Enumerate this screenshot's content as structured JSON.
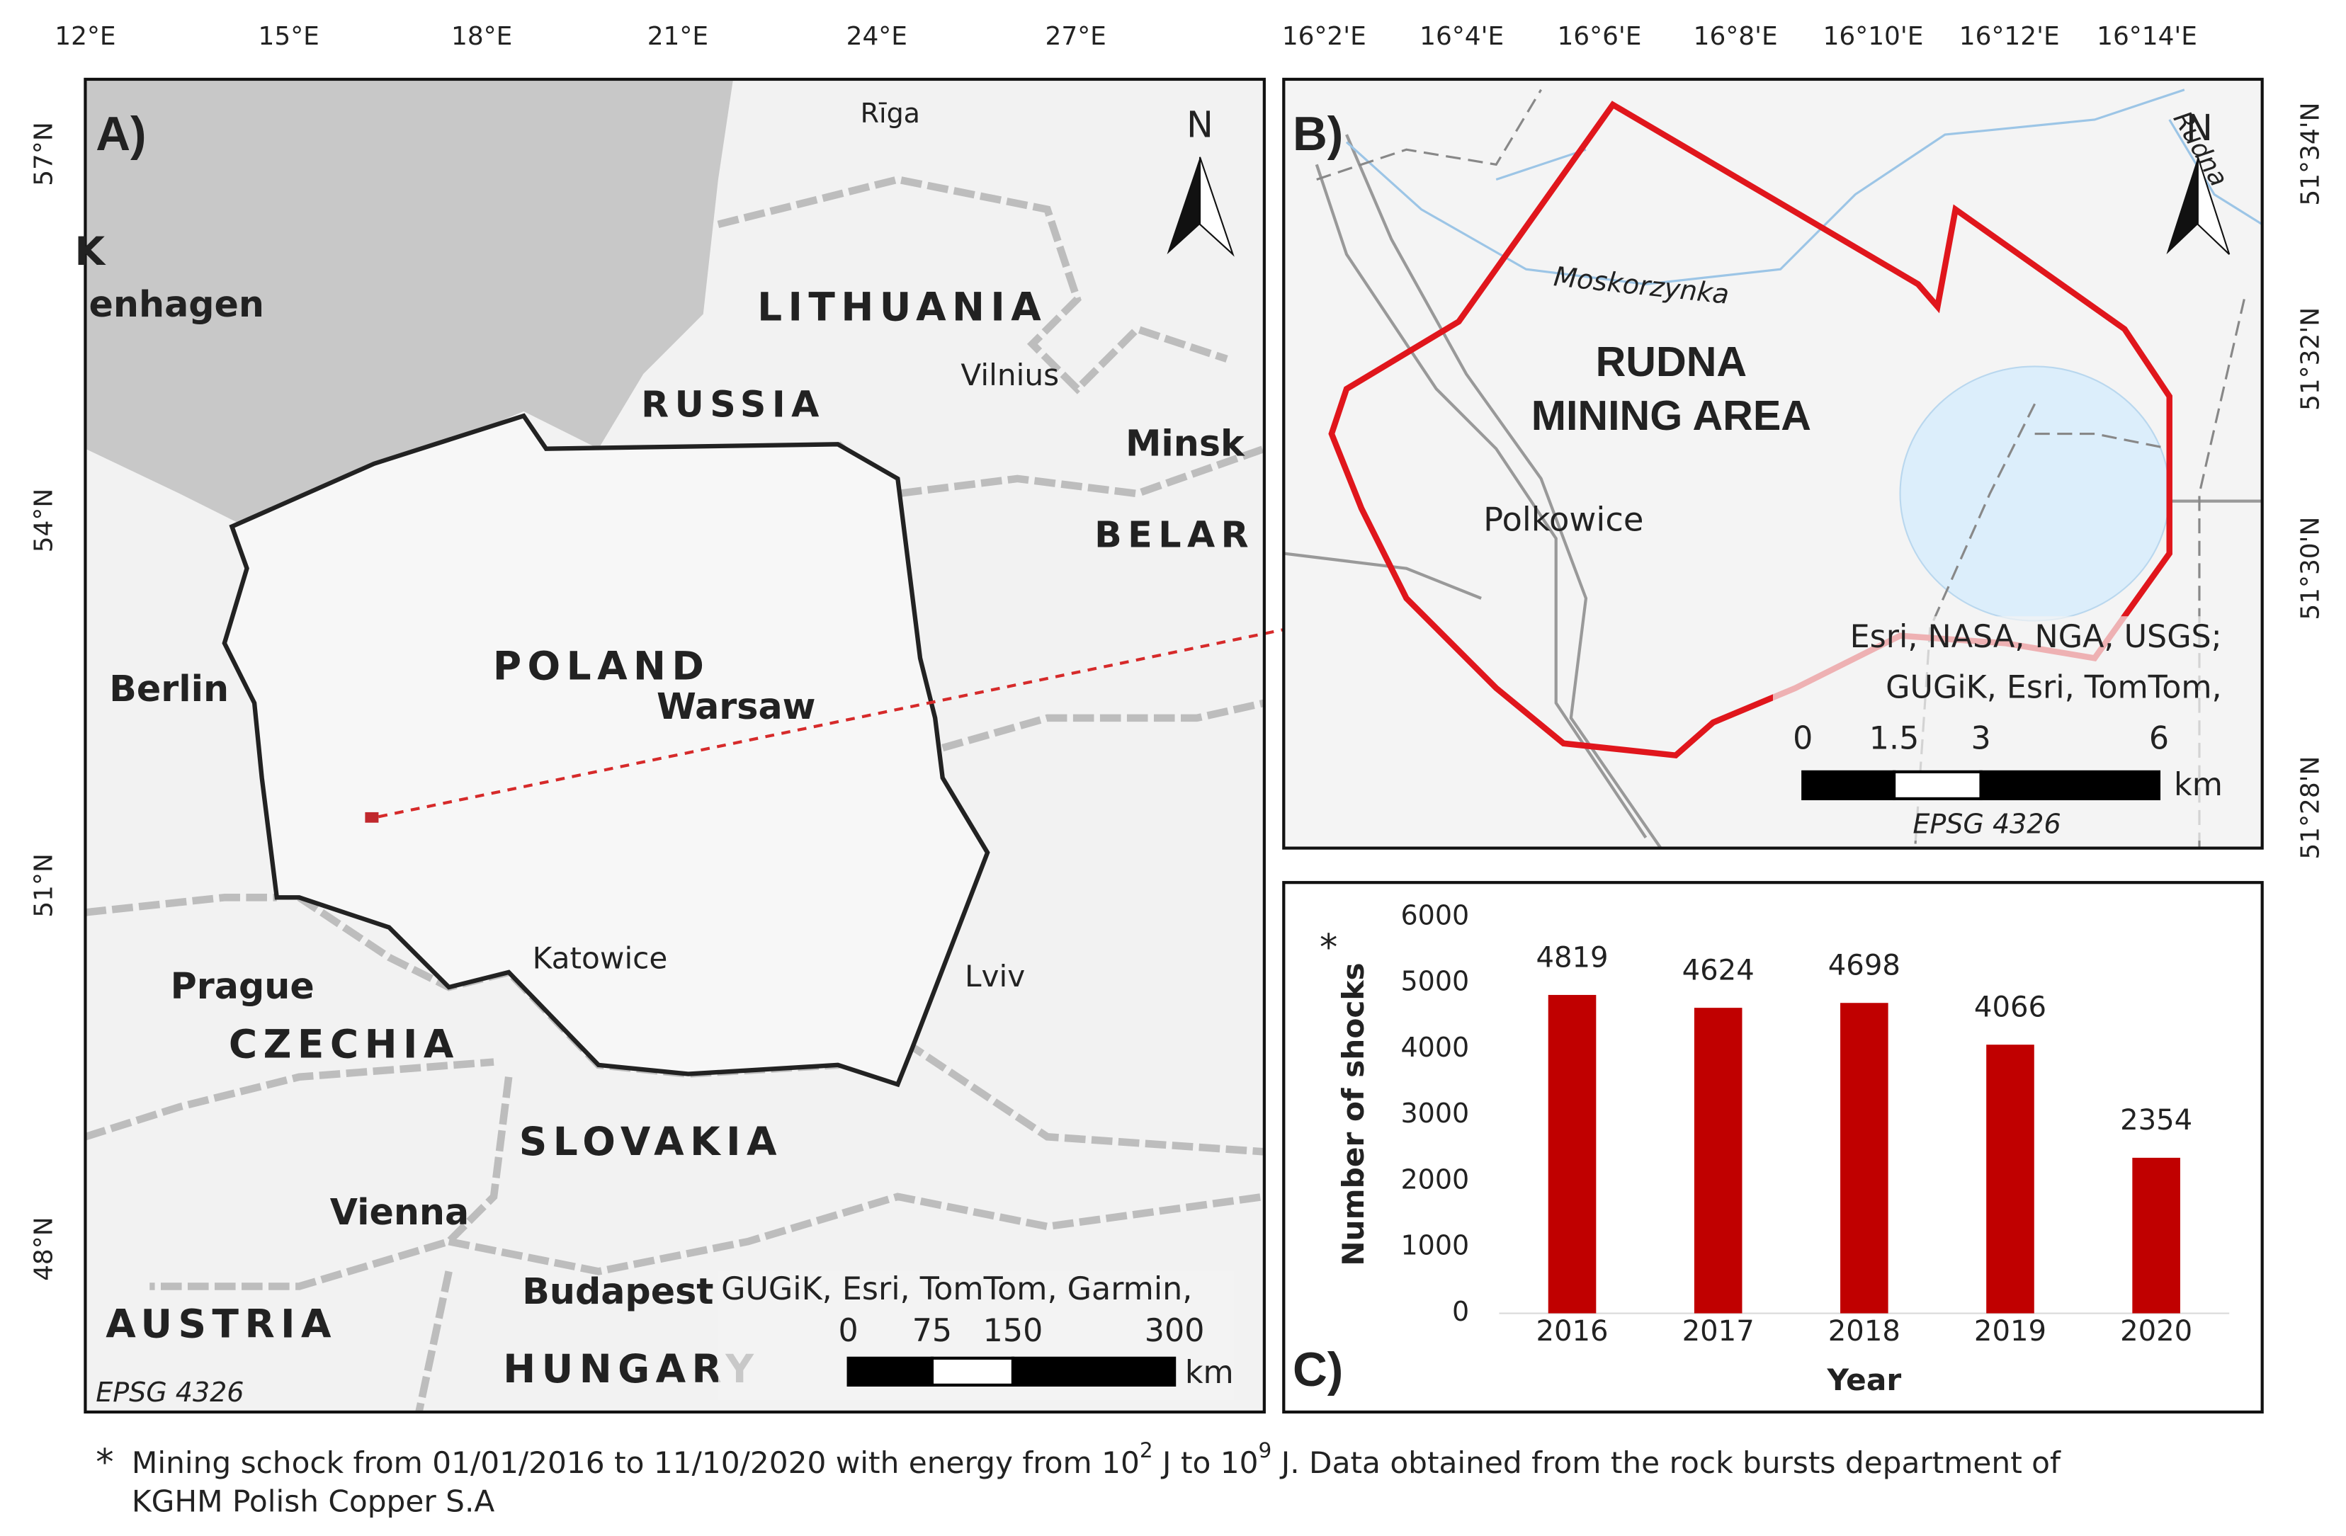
{
  "chart_data": {
    "type": "bar",
    "panel_label": "C)",
    "categories": [
      "2016",
      "2017",
      "2018",
      "2019",
      "2020"
    ],
    "values": [
      4819,
      4624,
      4698,
      4066,
      2354
    ],
    "color": "#c00000",
    "ylim": [
      0,
      6000
    ],
    "yticks": [
      0,
      1000,
      2000,
      3000,
      4000,
      5000,
      6000
    ],
    "grid": false,
    "x_label": "Year",
    "y_label": "Number of shocks",
    "y_label_marker": "*"
  },
  "map_a": {
    "panel_label": "A)",
    "lon_ticks": [
      "12°E",
      "15°E",
      "18°E",
      "21°E",
      "24°E",
      "27°E"
    ],
    "lat_ticks": [
      "57°N",
      "54°N",
      "51°N",
      "48°N"
    ],
    "north": "N",
    "places": [
      "Rīga",
      "K",
      "enhagen",
      "LITHUANIA",
      "Vilnius",
      "RUSSIA",
      "Minsk",
      "BELAR",
      "POLAND",
      "Warsaw",
      "Berlin",
      "Katowice",
      "Lviv",
      "Prague",
      "CZECHIA",
      "SLOVAKIA",
      "Vienna",
      "Budapest",
      "AUSTRIA",
      "HUNGARY"
    ],
    "credits": "GUGiK, Esri, TomTom, Garmin,",
    "scale_labels": [
      "0",
      "75",
      "150",
      "300"
    ],
    "scale_unit": "km",
    "epsg": "EPSG 4326"
  },
  "map_b": {
    "panel_label": "B)",
    "lon_ticks": [
      "16°2'E",
      "16°4'E",
      "16°6'E",
      "16°8'E",
      "16°10'E",
      "16°12'E",
      "16°14'E"
    ],
    "lat_ticks": [
      "51°34'N",
      "51°32'N",
      "51°30'N",
      "51°28'N"
    ],
    "north": "N",
    "title_lines": [
      "RUDNA",
      "MINING AREA"
    ],
    "places": [
      "Moskorzynka",
      "Rudna",
      "Polkowice"
    ],
    "credits": [
      "Esri, NASA, NGA, USGS;",
      "GUGiK, Esri, TomTom,"
    ],
    "scale_labels": [
      "0",
      "1.5",
      "3",
      "6"
    ],
    "scale_unit": "km",
    "epsg": "EPSG 4326"
  },
  "footnote": {
    "marker": "*",
    "parts": [
      "Mining schock from 01/01/2016 to 11/10/2020 with energy from 10",
      "2",
      " J to 10",
      "9",
      " J. Data obtained from the rock bursts department of"
    ],
    "line2": "KGHM Polish Copper S.A"
  }
}
